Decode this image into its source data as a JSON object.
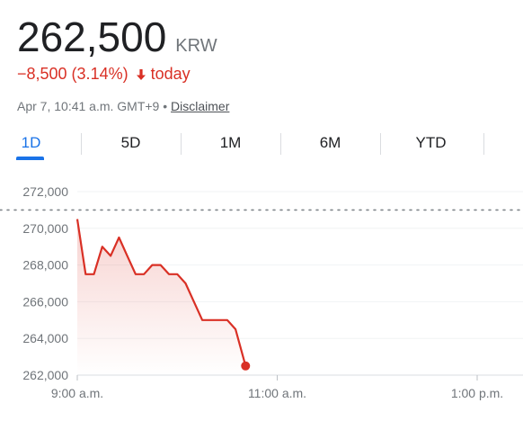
{
  "quote": {
    "price": "262,500",
    "currency": "KRW",
    "change": "−8,500 (3.14%)",
    "change_period": "today",
    "timestamp": "Apr 7, 10:41 a.m. GMT+9",
    "separator": "•",
    "disclaimer_label": "Disclaimer"
  },
  "colors": {
    "accent": "#1a73e8",
    "negative": "#d93025",
    "muted": "#70757a",
    "grid": "#f1f3f4"
  },
  "tabs": [
    {
      "label": "1D",
      "active": true
    },
    {
      "label": "5D",
      "active": false
    },
    {
      "label": "1M",
      "active": false
    },
    {
      "label": "6M",
      "active": false
    },
    {
      "label": "YTD",
      "active": false
    }
  ],
  "chart_data": {
    "type": "area",
    "x_unit": "time (GMT+9)",
    "xlim": [
      "9:00 a.m.",
      "3:00 p.m."
    ],
    "x_ticks": [
      {
        "t": "9:00",
        "label": "9:00 a.m."
      },
      {
        "t": "11:00",
        "label": "11:00 a.m."
      },
      {
        "t": "13:00",
        "label": "1:00 p.m."
      }
    ],
    "ylim": [
      262000,
      272000
    ],
    "y_ticks": [
      {
        "v": 262000,
        "label": "262,000"
      },
      {
        "v": 264000,
        "label": "264,000"
      },
      {
        "v": 266000,
        "label": "266,000"
      },
      {
        "v": 268000,
        "label": "268,000"
      },
      {
        "v": 270000,
        "label": "270,000"
      },
      {
        "v": 272000,
        "label": "272,000"
      }
    ],
    "previous_close": 271000,
    "grid": true,
    "series": [
      {
        "points": [
          {
            "t": "9:00",
            "v": 270500
          },
          {
            "t": "9:05",
            "v": 267500
          },
          {
            "t": "9:10",
            "v": 267500
          },
          {
            "t": "9:15",
            "v": 269000
          },
          {
            "t": "9:20",
            "v": 268500
          },
          {
            "t": "9:25",
            "v": 269500
          },
          {
            "t": "9:30",
            "v": 268500
          },
          {
            "t": "9:35",
            "v": 267500
          },
          {
            "t": "9:40",
            "v": 267500
          },
          {
            "t": "9:45",
            "v": 268000
          },
          {
            "t": "9:50",
            "v": 268000
          },
          {
            "t": "9:55",
            "v": 267500
          },
          {
            "t": "10:00",
            "v": 267500
          },
          {
            "t": "10:05",
            "v": 267000
          },
          {
            "t": "10:10",
            "v": 266000
          },
          {
            "t": "10:15",
            "v": 265000
          },
          {
            "t": "10:20",
            "v": 265000
          },
          {
            "t": "10:25",
            "v": 265000
          },
          {
            "t": "10:30",
            "v": 265000
          },
          {
            "t": "10:35",
            "v": 264500
          },
          {
            "t": "10:41",
            "v": 262500
          }
        ]
      }
    ]
  }
}
